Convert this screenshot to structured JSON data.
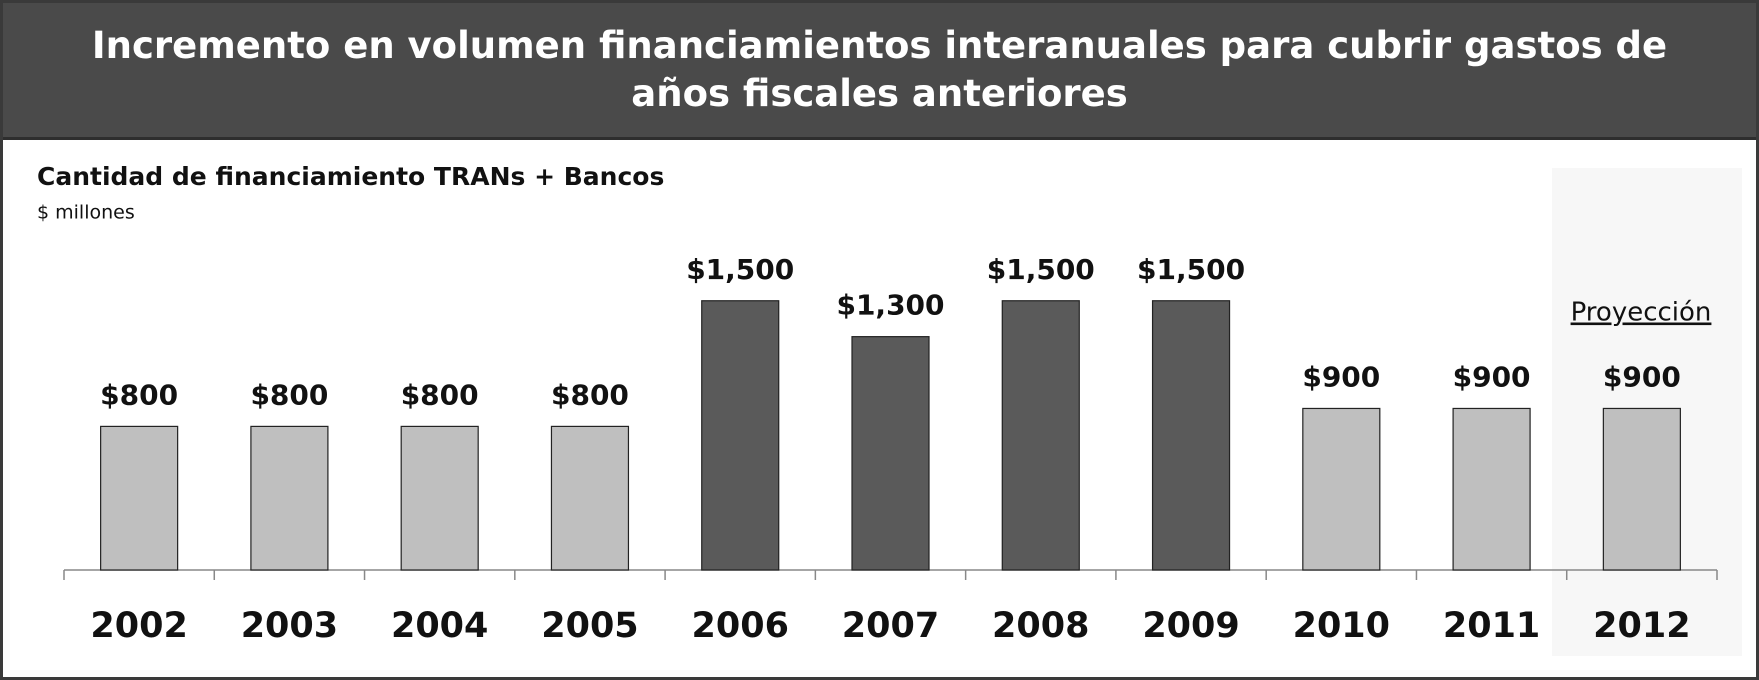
{
  "header": {
    "title": "Incremento en volumen financiamientos interanuales para cubrir gastos de años fiscales anteriores"
  },
  "chart_data": {
    "type": "bar",
    "title": "Cantidad de financiamiento TRANs + Bancos",
    "subtitle": "$ millones",
    "annotation": "Proyección",
    "categories": [
      "2002",
      "2003",
      "2004",
      "2005",
      "2006",
      "2007",
      "2008",
      "2009",
      "2010",
      "2011",
      "2012"
    ],
    "values": [
      800,
      800,
      800,
      800,
      1500,
      1300,
      1500,
      1500,
      900,
      900,
      900
    ],
    "value_labels": [
      "$800",
      "$800",
      "$800",
      "$800",
      "$1,500",
      "$1,300",
      "$1,500",
      "$1,500",
      "$900",
      "$900",
      "$900"
    ],
    "colors": [
      "#bfbfbf",
      "#bfbfbf",
      "#bfbfbf",
      "#bfbfbf",
      "#5a5a5a",
      "#5a5a5a",
      "#5a5a5a",
      "#5a5a5a",
      "#bfbfbf",
      "#bfbfbf",
      "#bfbfbf"
    ]
  }
}
